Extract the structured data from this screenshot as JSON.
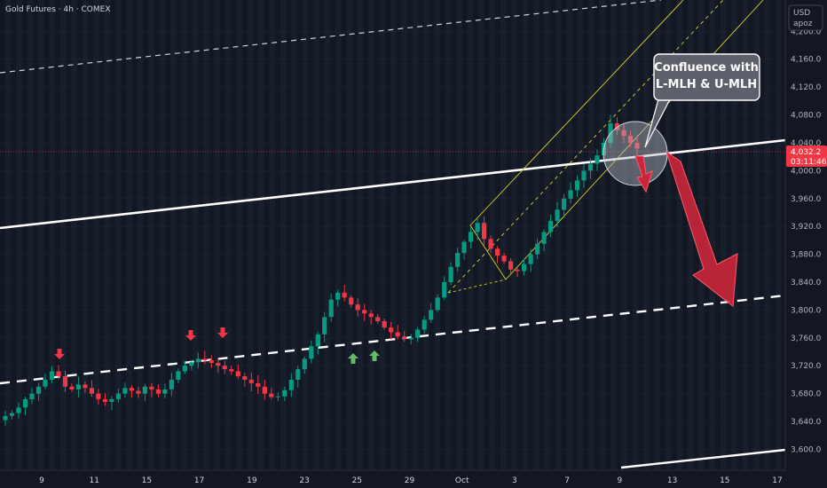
{
  "header": {
    "symbol_line": "Gold Futures · 4h · COMEX"
  },
  "scale_box": {
    "currency": "USD",
    "mode": "apoz"
  },
  "callout": {
    "line1": "Confluence with",
    "line2": "L-MLH & U-MLH"
  },
  "price_tag": {
    "price": "4,032.2",
    "countdown": "03:11:46",
    "color": "#f23645"
  },
  "colors": {
    "background": "#131722",
    "up_candle": "#089981",
    "down_candle": "#f23645",
    "channel_yellow": "#d6d62a",
    "arrow_red": "#c8263a",
    "arrow_green": "#66bb6a",
    "white_line": "#ffffff"
  },
  "chart_data": {
    "type": "candlestick",
    "timeframe": "4h",
    "ylim": [
      3570,
      4245
    ],
    "y_ticks": [
      "3,600.0",
      "3,640.0",
      "3,680.0",
      "3,720.0",
      "3,760.0",
      "3,800.0",
      "3,840.0",
      "3,880.0",
      "3,920.0",
      "3,960.0",
      "4,000.0",
      "4,040.0",
      "4,080.0",
      "4,120.0",
      "4,160.0",
      "4,200.0"
    ],
    "x_ticks": [
      "9",
      "11",
      "15",
      "17",
      "19",
      "23",
      "25",
      "29",
      "Oct",
      "3",
      "7",
      "9",
      "13",
      "15",
      "17"
    ],
    "current_price": 4032.2,
    "series": [
      {
        "name": "close",
        "values": [
          3648,
          3652,
          3660,
          3672,
          3680,
          3690,
          3700,
          3712,
          3705,
          3690,
          3686,
          3693,
          3688,
          3680,
          3672,
          3668,
          3672,
          3680,
          3688,
          3684,
          3680,
          3690,
          3686,
          3680,
          3686,
          3700,
          3712,
          3720,
          3725,
          3730,
          3728,
          3724,
          3720,
          3715,
          3712,
          3705,
          3700,
          3695,
          3690,
          3680,
          3675,
          3676,
          3685,
          3700,
          3715,
          3730,
          3748,
          3765,
          3790,
          3815,
          3825,
          3818,
          3808,
          3800,
          3795,
          3790,
          3784,
          3775,
          3768,
          3762,
          3758,
          3760,
          3772,
          3786,
          3800,
          3818,
          3840,
          3862,
          3882,
          3898,
          3912,
          3925,
          3902,
          3888,
          3878,
          3870,
          3858,
          3856,
          3866,
          3880,
          3895,
          3912,
          3928,
          3944,
          3960,
          3972,
          3986,
          4000,
          4010,
          4022,
          4040,
          4068,
          4058,
          4050,
          4040,
          4032
        ]
      }
    ],
    "annotations": [
      "Confluence with L-MLH & U-MLH"
    ]
  }
}
